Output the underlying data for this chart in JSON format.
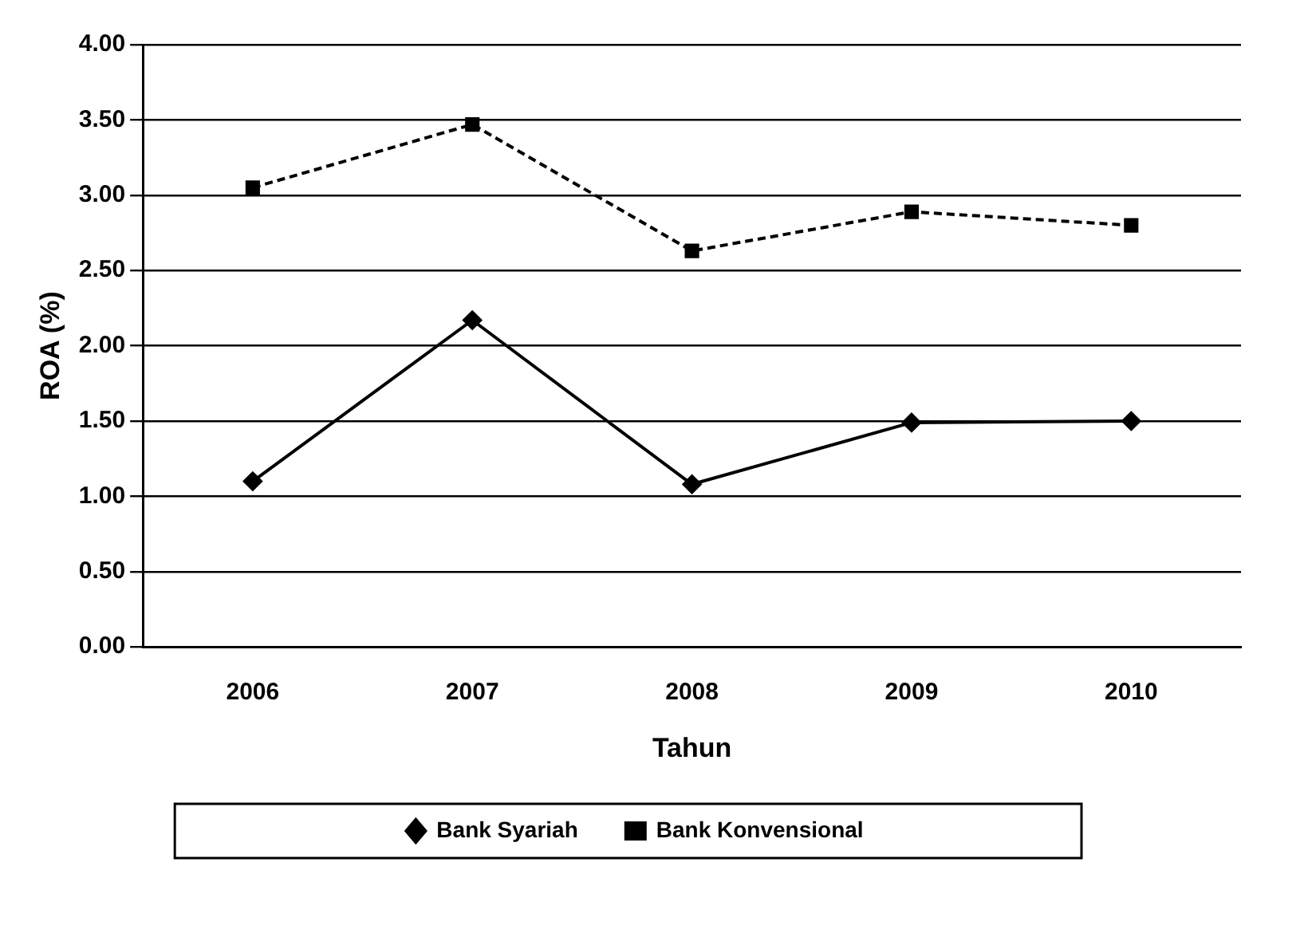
{
  "chart_data": {
    "type": "line",
    "xlabel": "Tahun",
    "ylabel": "ROA (%)",
    "categories": [
      "2006",
      "2007",
      "2008",
      "2009",
      "2010"
    ],
    "series": [
      {
        "name": "Bank Syariah",
        "color": "#000000",
        "values": [
          1.1,
          2.17,
          1.08,
          1.49,
          1.5
        ],
        "marker": "diamond",
        "line_style": "solid"
      },
      {
        "name": "Bank Konvensional",
        "color": "#000000",
        "values": [
          3.05,
          3.47,
          2.63,
          2.89,
          2.8
        ],
        "marker": "square",
        "line_style": "dashed"
      }
    ],
    "ylim": [
      0,
      4
    ],
    "yticks": [
      {
        "value": 0,
        "label": "0.00"
      },
      {
        "value": 0.5,
        "label": "0.50"
      },
      {
        "value": 1,
        "label": "1.00"
      },
      {
        "value": 1.5,
        "label": "1.50"
      },
      {
        "value": 2,
        "label": "2.00"
      },
      {
        "value": 2.5,
        "label": "2.50"
      },
      {
        "value": 3,
        "label": "3.00"
      },
      {
        "value": 3.5,
        "label": "3.50"
      },
      {
        "value": 4,
        "label": "4.00"
      }
    ],
    "grid": "y",
    "legend": "bottom"
  }
}
